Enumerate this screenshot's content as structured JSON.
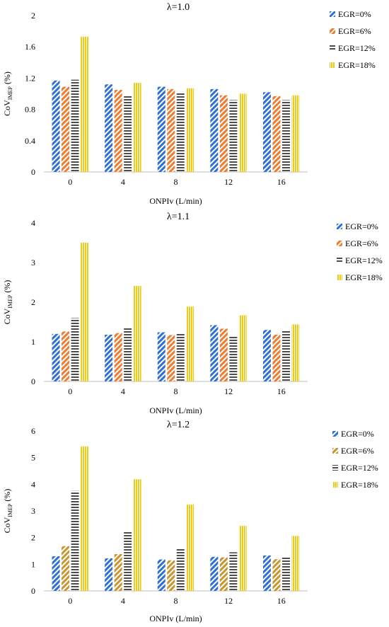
{
  "colors": {
    "EGR=0%": "#2f6fd6",
    "EGR=6%_chart1": "#ee7b2e",
    "EGR=6%_chart2": "#ee7b2e",
    "EGR=6%_chart3": "#c9952e",
    "EGR=12%": "#4d4d4d",
    "EGR=18%": "#f2cc14"
  },
  "chart_data": [
    {
      "type": "bar",
      "title": "λ=1.0",
      "xlabel": "ONPIv (L/min)",
      "ylabel": "CoV",
      "ylabel_sub": "IMEP",
      "ylabel_suffix": " (%)",
      "categories": [
        "0",
        "4",
        "8",
        "12",
        "16"
      ],
      "ylim": [
        0,
        2
      ],
      "yticks": [
        "0",
        "0.4",
        "0.8",
        "1.2",
        "1.6",
        "2"
      ],
      "legend_position": "right",
      "series": [
        {
          "name": "EGR=0%",
          "values": [
            1.17,
            1.12,
            1.09,
            1.06,
            1.02
          ]
        },
        {
          "name": "EGR=6%",
          "values": [
            1.09,
            1.05,
            1.06,
            0.98,
            0.97
          ]
        },
        {
          "name": "EGR=12%",
          "values": [
            1.18,
            0.97,
            1.02,
            0.92,
            0.92
          ]
        },
        {
          "name": "EGR=18%",
          "values": [
            1.73,
            1.14,
            1.07,
            1.0,
            0.98
          ]
        }
      ]
    },
    {
      "type": "bar",
      "title": "λ=1.1",
      "xlabel": "ONPIv (L/min)",
      "ylabel": "CoV",
      "ylabel_sub": "IMEP",
      "ylabel_suffix": " (%)",
      "categories": [
        "0",
        "4",
        "8",
        "12",
        "16"
      ],
      "ylim": [
        0,
        4
      ],
      "yticks": [
        "0",
        "1",
        "2",
        "3",
        "4"
      ],
      "legend_position": "right",
      "series": [
        {
          "name": "EGR=0%",
          "values": [
            1.2,
            1.18,
            1.24,
            1.42,
            1.3
          ]
        },
        {
          "name": "EGR=6%",
          "values": [
            1.26,
            1.22,
            1.17,
            1.33,
            1.18
          ]
        },
        {
          "name": "EGR=12%",
          "values": [
            1.6,
            1.37,
            1.22,
            1.13,
            1.27
          ]
        },
        {
          "name": "EGR=18%",
          "values": [
            3.5,
            2.41,
            1.89,
            1.67,
            1.44
          ]
        }
      ]
    },
    {
      "type": "bar",
      "title": "λ=1.2",
      "xlabel": "ONPIv (L/min)",
      "ylabel": "CoV",
      "ylabel_sub": "IMEP",
      "ylabel_suffix": " (%)",
      "categories": [
        "0",
        "4",
        "8",
        "12",
        "16"
      ],
      "ylim": [
        0,
        6
      ],
      "yticks": [
        "0",
        "1",
        "2",
        "3",
        "4",
        "5",
        "6"
      ],
      "legend_position": "right",
      "series": [
        {
          "name": "EGR=0%",
          "values": [
            1.3,
            1.22,
            1.18,
            1.28,
            1.33
          ]
        },
        {
          "name": "EGR=6%",
          "values": [
            1.68,
            1.38,
            1.15,
            1.26,
            1.19
          ]
        },
        {
          "name": "EGR=12%",
          "values": [
            3.75,
            2.25,
            1.58,
            1.45,
            1.3
          ]
        },
        {
          "name": "EGR=18%",
          "values": [
            5.42,
            4.19,
            3.24,
            2.44,
            2.06
          ]
        }
      ]
    }
  ]
}
